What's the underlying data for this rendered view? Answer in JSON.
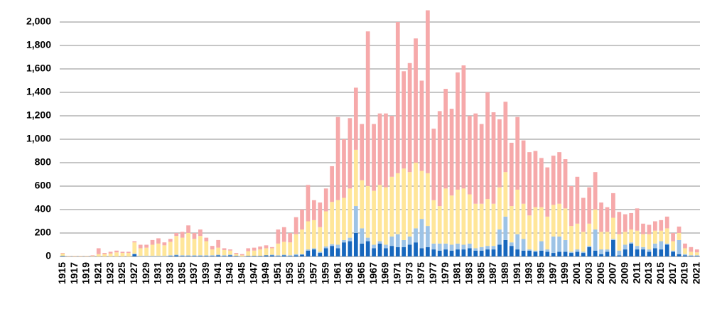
{
  "chart_data": {
    "type": "stacked_bar",
    "categories": [
      "1915",
      null,
      "1917",
      null,
      "1919",
      null,
      "1921",
      null,
      "1923",
      null,
      "1925",
      null,
      "1927",
      null,
      "1929",
      null,
      "1931",
      null,
      "1933",
      null,
      "1935",
      null,
      "1937",
      null,
      "1939",
      null,
      "1941",
      null,
      "1943",
      null,
      "1945",
      null,
      "1947",
      null,
      "1949",
      null,
      "1951",
      null,
      "1953",
      null,
      "1955",
      null,
      "1957",
      null,
      "1959",
      null,
      "1961",
      null,
      "1963",
      null,
      "1965",
      null,
      "1967",
      null,
      "1969",
      null,
      "1971",
      null,
      "1973",
      null,
      "1975",
      null,
      "1977",
      null,
      "1979",
      null,
      "1981",
      null,
      "1983",
      null,
      "1985",
      null,
      "1987",
      null,
      "1989",
      null,
      "1991",
      null,
      "1993",
      null,
      "1995",
      null,
      "1997",
      null,
      "1999",
      null,
      "2001",
      null,
      "2003",
      null,
      "2005",
      null,
      "2007",
      null,
      "2009",
      null,
      "2011",
      null,
      "2013",
      null,
      "2015",
      null,
      "2017",
      null,
      "2019",
      null,
      "2021"
    ],
    "series": [
      {
        "color": "#1767bd",
        "values": [
          5,
          0,
          0,
          0,
          0,
          0,
          0,
          0,
          0,
          0,
          0,
          0,
          20,
          0,
          0,
          0,
          0,
          0,
          5,
          10,
          5,
          5,
          5,
          5,
          5,
          5,
          10,
          5,
          10,
          5,
          0,
          5,
          5,
          5,
          10,
          10,
          5,
          10,
          5,
          10,
          15,
          50,
          60,
          30,
          70,
          90,
          70,
          120,
          130,
          200,
          110,
          130,
          70,
          110,
          70,
          90,
          80,
          80,
          100,
          120,
          70,
          80,
          60,
          50,
          60,
          50,
          60,
          60,
          70,
          50,
          50,
          60,
          60,
          100,
          140,
          90,
          60,
          50,
          50,
          40,
          50,
          40,
          30,
          40,
          40,
          30,
          40,
          30,
          80,
          50,
          20,
          40,
          140,
          10,
          60,
          110,
          60,
          60,
          40,
          70,
          60,
          100,
          40,
          20,
          10,
          5,
          5
        ]
      },
      {
        "color": "#9dc3e6",
        "values": [
          0,
          0,
          0,
          0,
          0,
          0,
          0,
          0,
          0,
          0,
          0,
          0,
          5,
          5,
          5,
          5,
          5,
          5,
          5,
          5,
          5,
          5,
          5,
          5,
          5,
          5,
          5,
          5,
          5,
          0,
          0,
          0,
          0,
          0,
          0,
          5,
          5,
          5,
          5,
          10,
          5,
          10,
          10,
          10,
          15,
          15,
          30,
          20,
          30,
          230,
          130,
          30,
          30,
          20,
          30,
          80,
          110,
          60,
          70,
          120,
          250,
          180,
          50,
          60,
          50,
          50,
          50,
          40,
          40,
          20,
          30,
          30,
          30,
          130,
          200,
          30,
          130,
          100,
          10,
          10,
          80,
          20,
          140,
          130,
          100,
          10,
          20,
          10,
          10,
          180,
          40,
          20,
          10,
          40,
          40,
          10,
          30,
          20,
          20,
          40,
          70,
          10,
          10,
          120,
          10,
          5,
          5
        ]
      },
      {
        "color": "#ffe699",
        "values": [
          20,
          3,
          3,
          3,
          3,
          5,
          20,
          20,
          25,
          35,
          30,
          30,
          95,
          65,
          70,
          95,
          105,
          90,
          115,
          160,
          150,
          190,
          140,
          165,
          120,
          50,
          60,
          45,
          35,
          15,
          10,
          40,
          45,
          55,
          60,
          55,
          100,
          110,
          110,
          170,
          210,
          240,
          240,
          210,
          300,
          360,
          380,
          360,
          420,
          480,
          410,
          440,
          460,
          480,
          490,
          510,
          520,
          610,
          550,
          560,
          410,
          450,
          370,
          320,
          470,
          420,
          460,
          480,
          420,
          380,
          370,
          400,
          360,
          360,
          380,
          310,
          380,
          300,
          290,
          370,
          290,
          280,
          270,
          280,
          270,
          220,
          220,
          170,
          190,
          170,
          150,
          150,
          180,
          140,
          110,
          110,
          130,
          110,
          130,
          110,
          90,
          130,
          80,
          60,
          50,
          30,
          25
        ]
      },
      {
        "color": "#f6a9aa",
        "values": [
          5,
          2,
          2,
          2,
          2,
          5,
          50,
          10,
          15,
          15,
          10,
          10,
          10,
          30,
          25,
          40,
          45,
          25,
          25,
          25,
          50,
          65,
          50,
          55,
          30,
          30,
          65,
          15,
          10,
          10,
          10,
          25,
          25,
          25,
          25,
          10,
          120,
          125,
          80,
          145,
          170,
          310,
          170,
          210,
          195,
          305,
          710,
          500,
          600,
          530,
          480,
          1320,
          570,
          610,
          630,
          520,
          1290,
          830,
          930,
          1060,
          770,
          1390,
          610,
          810,
          850,
          740,
          1000,
          1050,
          670,
          770,
          680,
          910,
          780,
          580,
          600,
          540,
          620,
          540,
          540,
          480,
          420,
          420,
          420,
          440,
          420,
          340,
          400,
          290,
          310,
          320,
          250,
          210,
          210,
          190,
          150,
          140,
          190,
          90,
          80,
          80,
          90,
          100,
          70,
          55,
          40,
          40,
          25
        ]
      }
    ],
    "ylim": [
      0,
      2100
    ],
    "yticks": [
      0,
      200,
      400,
      600,
      800,
      {
        "value": 1000,
        "label": "1,000"
      },
      {
        "value": 1200,
        "label": "1,200"
      },
      {
        "value": 1400,
        "label": "1,400"
      },
      {
        "value": 1600,
        "label": "1,600"
      },
      {
        "value": 1800,
        "label": "1,800"
      },
      {
        "value": 2000,
        "label": "2,000"
      }
    ],
    "grid": true
  }
}
